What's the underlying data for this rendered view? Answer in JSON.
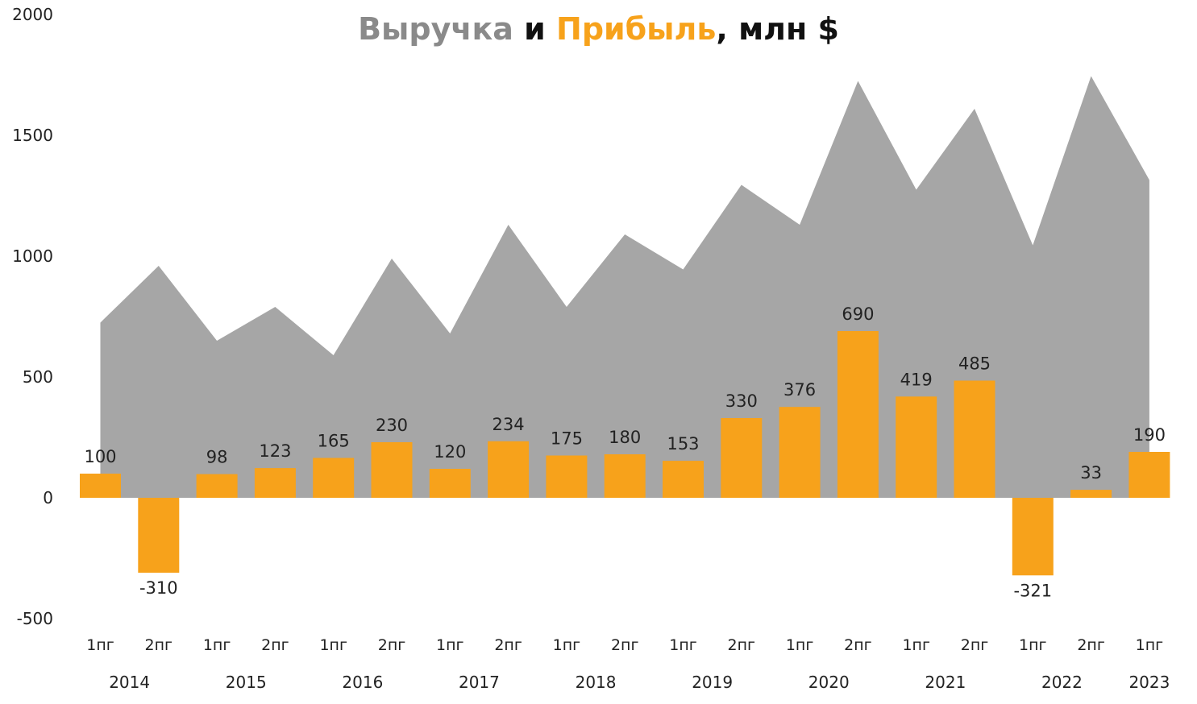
{
  "title": {
    "part_revenue": "Выручка",
    "part_and": " и ",
    "part_profit": "Прибыль",
    "part_rest": ", млн $"
  },
  "chart_data": {
    "type": "bar",
    "title": "Выручка и Прибыль, млн $",
    "categories": [
      "1пг",
      "2пг",
      "1пг",
      "2пг",
      "1пг",
      "2пг",
      "1пг",
      "2пг",
      "1пг",
      "2пг",
      "1пг",
      "2пг",
      "1пг",
      "2пг",
      "1пг",
      "2пг",
      "1пг",
      "2пг",
      "1пг"
    ],
    "years": [
      {
        "label": "2014",
        "start": 0,
        "span": 2
      },
      {
        "label": "2015",
        "start": 2,
        "span": 2
      },
      {
        "label": "2016",
        "start": 4,
        "span": 2
      },
      {
        "label": "2017",
        "start": 6,
        "span": 2
      },
      {
        "label": "2018",
        "start": 8,
        "span": 2
      },
      {
        "label": "2019",
        "start": 10,
        "span": 2
      },
      {
        "label": "2020",
        "start": 12,
        "span": 2
      },
      {
        "label": "2021",
        "start": 14,
        "span": 2
      },
      {
        "label": "2022",
        "start": 16,
        "span": 2
      },
      {
        "label": "2023",
        "start": 18,
        "span": 1
      }
    ],
    "series": [
      {
        "name": "Выручка",
        "type": "area",
        "color": "#a6a6a6",
        "values": [
          725,
          960,
          650,
          790,
          590,
          990,
          680,
          1130,
          790,
          1090,
          945,
          1295,
          1130,
          1725,
          1275,
          1610,
          1045,
          1745,
          1315
        ]
      },
      {
        "name": "Прибыль",
        "type": "bar",
        "color": "#f7a21b",
        "values": [
          100,
          -310,
          98,
          123,
          165,
          230,
          120,
          234,
          175,
          180,
          153,
          330,
          376,
          690,
          419,
          485,
          -321,
          33,
          190
        ]
      }
    ],
    "yticks": [
      -500,
      0,
      500,
      1000,
      1500,
      2000
    ],
    "ylim": [
      -500,
      2000
    ],
    "grid": false,
    "legend": "none"
  }
}
